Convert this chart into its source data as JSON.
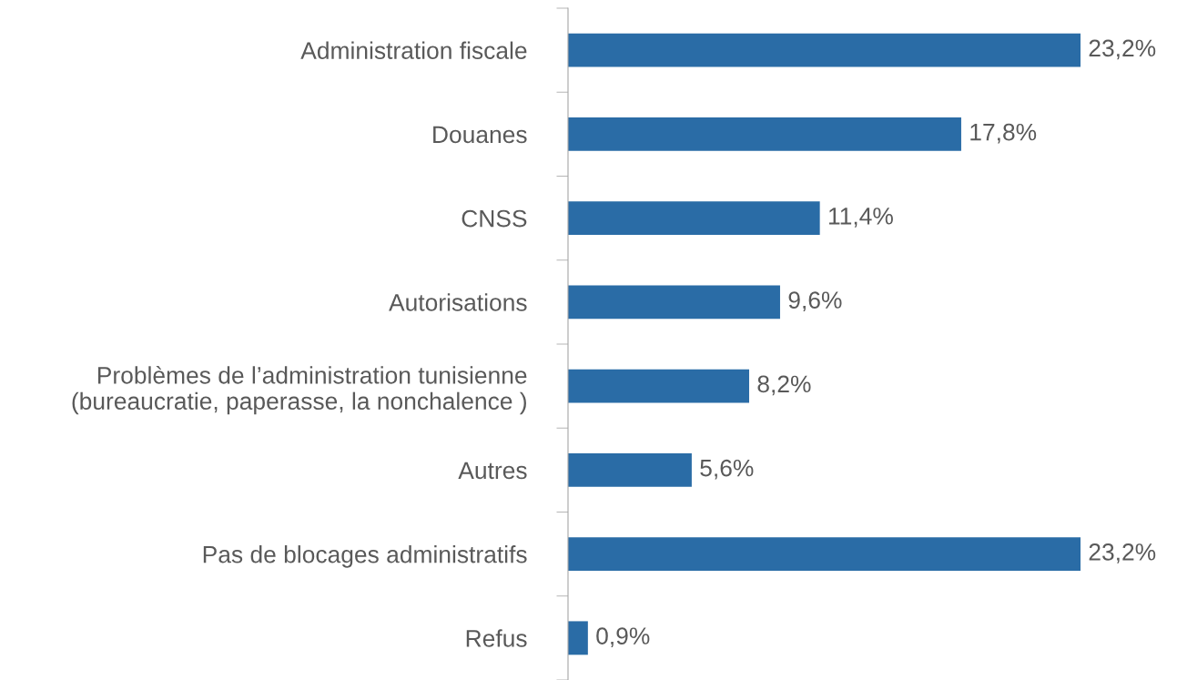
{
  "chart_data": {
    "type": "bar",
    "orientation": "horizontal",
    "categories": [
      "Administration fiscale",
      "Douanes",
      "CNSS",
      "Autorisations",
      "Problèmes de l’administration tunisienne\n(bureaucratie, paperasse, la nonchalence )",
      "Autres",
      "Pas de blocages administratifs",
      "Refus"
    ],
    "values": [
      23.2,
      17.8,
      11.4,
      9.6,
      8.2,
      5.6,
      23.2,
      0.9
    ],
    "value_labels": [
      "23,2%",
      "17,8%",
      "11,4%",
      "9,6%",
      "8,2%",
      "5,6%",
      "23,2%",
      "0,9%"
    ],
    "color": "#2a6ca6",
    "grid": false,
    "legend": false
  }
}
